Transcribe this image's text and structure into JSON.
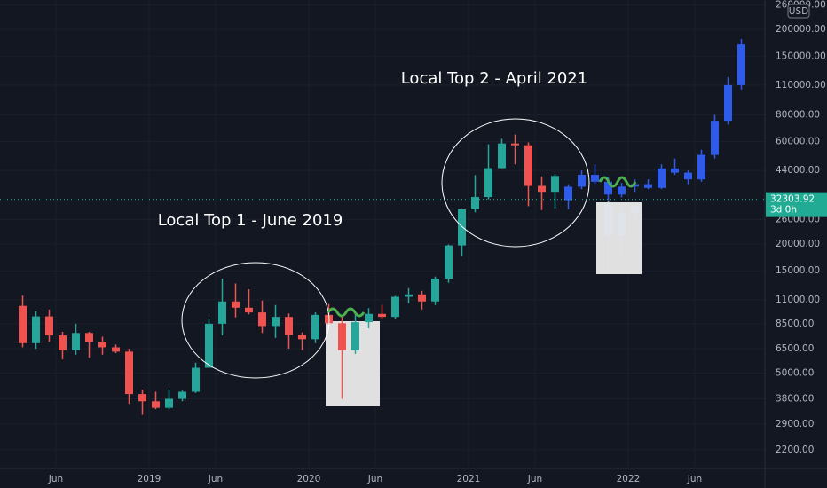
{
  "chart_data": {
    "type": "candlestick",
    "log_scale": true,
    "grid": true,
    "currency": "USD",
    "interval": "3d 0h",
    "last_price": 32303.92,
    "last_price_color": "#22ab94",
    "annotations": [
      "Local Top 1 - June 2019",
      "Local Top 2 - April 2021"
    ],
    "xlim": [
      "2018-02",
      "2022-11"
    ],
    "ylim": [
      1800,
      274000
    ],
    "xticks": [
      {
        "value": "2018-06",
        "label": "Jun"
      },
      {
        "value": "2019-01",
        "label": "2019"
      },
      {
        "value": "2019-06",
        "label": "Jun"
      },
      {
        "value": "2020-01",
        "label": "2020"
      },
      {
        "value": "2020-06",
        "label": "Jun"
      },
      {
        "value": "2021-01",
        "label": "2021"
      },
      {
        "value": "2021-06",
        "label": "Jun"
      },
      {
        "value": "2022-01",
        "label": "2022"
      },
      {
        "value": "2022-06",
        "label": "Jun"
      }
    ],
    "yticks": [
      {
        "value": 2200,
        "label": "2200.00"
      },
      {
        "value": 2900,
        "label": "2900.00"
      },
      {
        "value": 3800,
        "label": "3800.00"
      },
      {
        "value": 5000,
        "label": "5000.00"
      },
      {
        "value": 6500,
        "label": "6500.00"
      },
      {
        "value": 8500,
        "label": "8500.00"
      },
      {
        "value": 11000,
        "label": "11000.00"
      },
      {
        "value": 15000,
        "label": "15000.00"
      },
      {
        "value": 20000,
        "label": "20000.00"
      },
      {
        "value": 26000,
        "label": "26000.00"
      },
      {
        "value": 44000,
        "label": "44000.00"
      },
      {
        "value": 60000,
        "label": "60000.00"
      },
      {
        "value": 80000,
        "label": "80000.00"
      },
      {
        "value": 110000,
        "label": "110000.00"
      },
      {
        "value": 150000,
        "label": "150000.00"
      },
      {
        "value": 200000,
        "label": "200000.00"
      },
      {
        "value": 260000,
        "label": "260000.00"
      }
    ],
    "series": [
      {
        "color_up": "#26a69a",
        "color_down": "#ef5350",
        "x": [
          "2018-03",
          "2018-04",
          "2018-05",
          "2018-06",
          "2018-07",
          "2018-08",
          "2018-09",
          "2018-10",
          "2018-11",
          "2018-12",
          "2019-01",
          "2019-02",
          "2019-03",
          "2019-04",
          "2019-05",
          "2019-06",
          "2019-07",
          "2019-08",
          "2019-09",
          "2019-10",
          "2019-11",
          "2019-12",
          "2020-01",
          "2020-02",
          "2020-03",
          "2020-04",
          "2020-05",
          "2020-06",
          "2020-07",
          "2020-08",
          "2020-09",
          "2020-10",
          "2020-11",
          "2020-12",
          "2021-01",
          "2021-02",
          "2021-03",
          "2021-04",
          "2021-05",
          "2021-06",
          "2021-07"
        ],
        "open": [
          10300,
          6900,
          9200,
          7500,
          6400,
          7700,
          7000,
          6600,
          6300,
          4000,
          3700,
          3450,
          3800,
          4100,
          5300,
          8500,
          10800,
          10100,
          9600,
          8300,
          9150,
          7550,
          7200,
          9350,
          8550,
          6400,
          8650,
          9450,
          9150,
          11350,
          11650,
          10800,
          13800,
          19700,
          29000,
          33100,
          45100,
          58800,
          57700,
          37300,
          35000
        ],
        "high": [
          11500,
          9700,
          9900,
          7800,
          8500,
          7800,
          7400,
          6800,
          6500,
          4200,
          4100,
          4200,
          4150,
          5600,
          9000,
          13800,
          13100,
          12300,
          10900,
          10400,
          9500,
          7750,
          9600,
          10500,
          9200,
          9450,
          10050,
          10400,
          11450,
          12450,
          12100,
          14100,
          19900,
          29300,
          41900,
          58300,
          61800,
          64800,
          59500,
          41300,
          42300
        ],
        "low": [
          6600,
          6500,
          7000,
          5800,
          6100,
          5900,
          6100,
          6200,
          3600,
          3200,
          3400,
          3400,
          3700,
          4050,
          5300,
          7500,
          9100,
          9400,
          7700,
          7300,
          6500,
          6400,
          6900,
          8450,
          3800,
          6150,
          8100,
          8900,
          8950,
          10600,
          9900,
          10400,
          13200,
          17600,
          28100,
          32300,
          45000,
          47000,
          30000,
          28800,
          29300
        ],
        "close": [
          6900,
          9200,
          7500,
          6400,
          7700,
          7000,
          6600,
          6300,
          4000,
          3700,
          3450,
          3800,
          4100,
          5300,
          8500,
          10800,
          10100,
          9600,
          8300,
          9150,
          7550,
          7200,
          9350,
          8550,
          6400,
          8650,
          9450,
          9150,
          11350,
          11650,
          10800,
          13800,
          19700,
          29000,
          33100,
          45100,
          58800,
          57700,
          37300,
          35000,
          41500
        ]
      },
      {
        "color": "#2f5bea",
        "x": [
          "2021-08",
          "2021-09",
          "2021-10",
          "2021-11",
          "2021-12",
          "2022-01",
          "2022-02",
          "2022-03",
          "2022-04",
          "2022-05",
          "2022-06",
          "2022-07",
          "2022-08",
          "2022-09"
        ],
        "open": [
          32000,
          37000,
          42000,
          39000,
          34000,
          37000,
          38000,
          36500,
          45000,
          43000,
          40000,
          52000,
          75000,
          110000
        ],
        "high": [
          38000,
          44000,
          47000,
          41000,
          38500,
          40000,
          40000,
          47000,
          50000,
          44000,
          55000,
          80000,
          120000,
          180000
        ],
        "low": [
          29000,
          36000,
          38000,
          32000,
          33000,
          35000,
          36000,
          36000,
          42000,
          38000,
          39000,
          50000,
          72000,
          105000
        ],
        "close": [
          37000,
          42000,
          39000,
          34000,
          37000,
          38000,
          36500,
          45000,
          43000,
          40000,
          52000,
          75000,
          110000,
          170000
        ]
      },
      {
        "color": "#dfe3ea",
        "x": [
          "2021-11",
          "2021-12",
          "2022-01"
        ],
        "open": [
          31000,
          22000,
          28000
        ],
        "high": [
          31500,
          30000,
          31000
        ],
        "low": [
          15000,
          18000,
          26000
        ],
        "close": [
          22000,
          28000,
          30000
        ]
      }
    ]
  }
}
